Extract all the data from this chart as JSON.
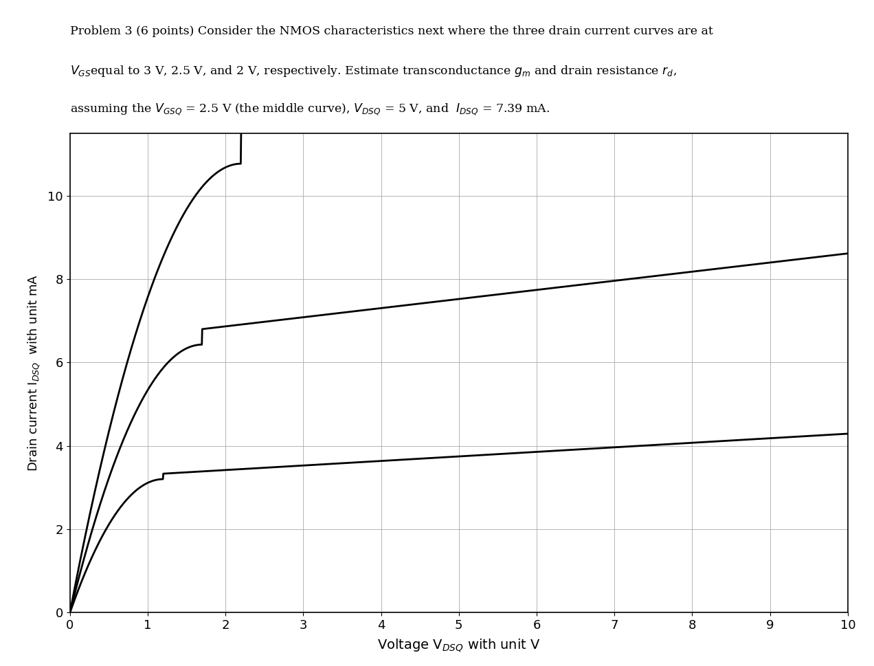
{
  "xlabel": "Voltage V$_{DSQ}$ with unit V",
  "ylabel": "Drain current I$_{DSQ}$  with unit mA",
  "xlim": [
    0,
    10
  ],
  "ylim": [
    0,
    11.5
  ],
  "xticks": [
    0,
    1,
    2,
    3,
    4,
    5,
    6,
    7,
    8,
    9,
    10
  ],
  "yticks": [
    0,
    2,
    4,
    6,
    8,
    10
  ],
  "line_color": "#000000",
  "line_width": 2.0,
  "background_color": "#ffffff",
  "grid_color": "#aaaaaa",
  "curves": [
    {
      "vsat": 1.0,
      "id_sat": 7.12,
      "lam": 0.032,
      "rise_k": 8.0
    },
    {
      "vsat": 1.5,
      "id_sat": 6.55,
      "lam": 0.022,
      "rise_k": 6.0
    },
    {
      "vsat": 2.0,
      "id_sat": 5.52,
      "lam": 0.016,
      "rise_k": 4.5
    }
  ],
  "text_lines": [
    "Problem 3 (6 points) Consider the NMOS characteristics next where the three drain current curves are at",
    "__VGS__equal to 3 V, 2.5 V, and 2 V, respectively. Estimate transconductance __gm__ and drain resistance __rd__,",
    "assuming the __VGSQ__ = 2.5 V (the middle curve), __VDSQ__ = 5 V, and  __IDSQ__ = 7.39 mA."
  ]
}
